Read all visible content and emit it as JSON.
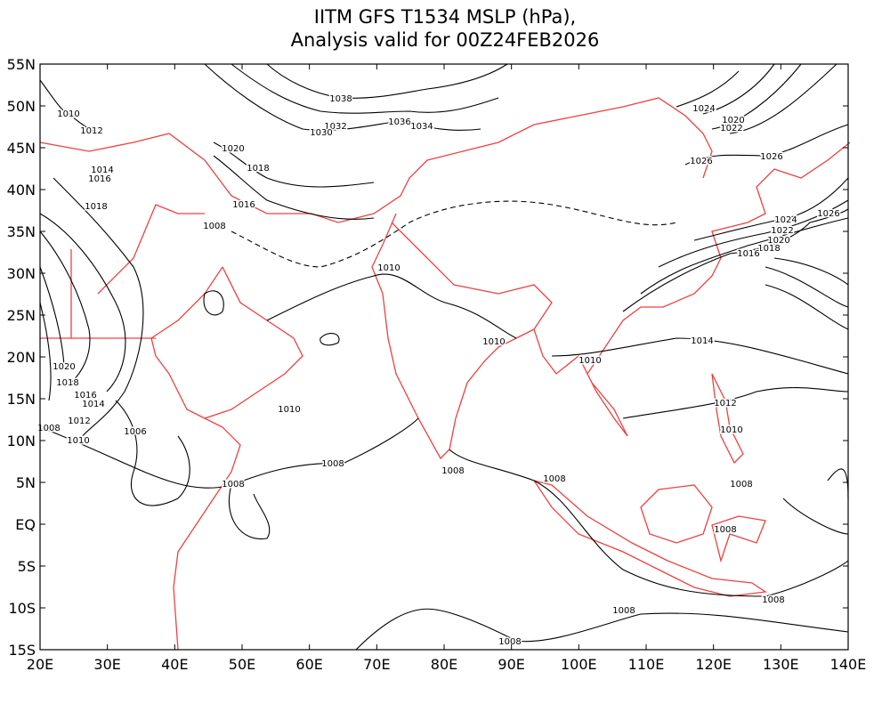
{
  "title": [
    "IITM GFS T1534 MSLP (hPa),",
    "Analysis valid for 00Z24FEB2026"
  ],
  "x_axis": {
    "lim": [
      20,
      140
    ],
    "ticks": [
      {
        "value": 20,
        "label": "20E"
      },
      {
        "value": 30,
        "label": "30E"
      },
      {
        "value": 40,
        "label": "40E"
      },
      {
        "value": 50,
        "label": "50E"
      },
      {
        "value": 60,
        "label": "60E"
      },
      {
        "value": 70,
        "label": "70E"
      },
      {
        "value": 80,
        "label": "80E"
      },
      {
        "value": 90,
        "label": "90E"
      },
      {
        "value": 100,
        "label": "100E"
      },
      {
        "value": 110,
        "label": "110E"
      },
      {
        "value": 120,
        "label": "120E"
      },
      {
        "value": 130,
        "label": "130E"
      },
      {
        "value": 140,
        "label": "140E"
      }
    ]
  },
  "y_axis": {
    "lim": [
      -15,
      55
    ],
    "ticks": [
      {
        "value": 55,
        "label": "55N"
      },
      {
        "value": 50,
        "label": "50N"
      },
      {
        "value": 45,
        "label": "45N"
      },
      {
        "value": 40,
        "label": "40N"
      },
      {
        "value": 35,
        "label": "35N"
      },
      {
        "value": 30,
        "label": "30N"
      },
      {
        "value": 25,
        "label": "25N"
      },
      {
        "value": 20,
        "label": "20N"
      },
      {
        "value": 15,
        "label": "15N"
      },
      {
        "value": 10,
        "label": "10N"
      },
      {
        "value": 5,
        "label": "5N"
      },
      {
        "value": 0,
        "label": "EQ"
      },
      {
        "value": -5,
        "label": "5S"
      },
      {
        "value": -10,
        "label": "10S"
      },
      {
        "value": -15,
        "label": "15S"
      }
    ]
  },
  "contour_labels": [
    "1038",
    "1036",
    "1034",
    "1032",
    "1030",
    "1010",
    "1012",
    "1020",
    "1018",
    "1014",
    "1016",
    "1016",
    "1018",
    "1008",
    "1010",
    "1024",
    "1020",
    "1022",
    "1026",
    "1026",
    "1026",
    "1024",
    "1022",
    "1020",
    "1018",
    "1016",
    "1014",
    "1010",
    "1010",
    "1020",
    "1018",
    "1016",
    "1014",
    "1012",
    "1008",
    "1010",
    "1006",
    "1010",
    "1012",
    "1010",
    "1008",
    "1008",
    "1008",
    "1008",
    "1008",
    "1008",
    "1008",
    "1008",
    "1008"
  ]
}
